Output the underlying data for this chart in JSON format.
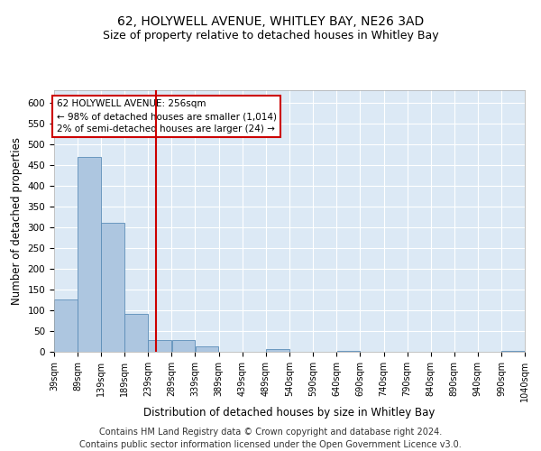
{
  "title": "62, HOLYWELL AVENUE, WHITLEY BAY, NE26 3AD",
  "subtitle": "Size of property relative to detached houses in Whitley Bay",
  "xlabel": "Distribution of detached houses by size in Whitley Bay",
  "ylabel": "Number of detached properties",
  "footer_line1": "Contains HM Land Registry data © Crown copyright and database right 2024.",
  "footer_line2": "Contains public sector information licensed under the Open Government Licence v3.0.",
  "annotation_line1": "62 HOLYWELL AVENUE: 256sqm",
  "annotation_line2": "← 98% of detached houses are smaller (1,014)",
  "annotation_line3": "2% of semi-detached houses are larger (24) →",
  "property_size": 256,
  "bin_edges": [
    39,
    89,
    139,
    189,
    239,
    289,
    339,
    389,
    439,
    489,
    540,
    590,
    640,
    690,
    740,
    790,
    840,
    890,
    940,
    990,
    1040
  ],
  "bin_labels": [
    "39sqm",
    "89sqm",
    "139sqm",
    "189sqm",
    "239sqm",
    "289sqm",
    "339sqm",
    "389sqm",
    "439sqm",
    "489sqm",
    "540sqm",
    "590sqm",
    "640sqm",
    "690sqm",
    "740sqm",
    "790sqm",
    "840sqm",
    "890sqm",
    "940sqm",
    "990sqm",
    "1040sqm"
  ],
  "bar_heights": [
    125,
    470,
    310,
    92,
    28,
    28,
    12,
    0,
    0,
    6,
    0,
    0,
    2,
    0,
    0,
    0,
    0,
    0,
    0,
    2
  ],
  "bar_color": "#adc6e0",
  "bar_edge_color": "#5b8db8",
  "vline_color": "#cc0000",
  "vline_x": 256,
  "ylim": [
    0,
    630
  ],
  "yticks": [
    0,
    50,
    100,
    150,
    200,
    250,
    300,
    350,
    400,
    450,
    500,
    550,
    600
  ],
  "plot_background": "#dce9f5",
  "grid_color": "#ffffff",
  "annotation_box_color": "#ffffff",
  "annotation_box_edge": "#cc0000",
  "title_fontsize": 10,
  "subtitle_fontsize": 9,
  "axis_label_fontsize": 8.5,
  "tick_fontsize": 7.5,
  "annotation_fontsize": 7.5,
  "footer_fontsize": 7
}
